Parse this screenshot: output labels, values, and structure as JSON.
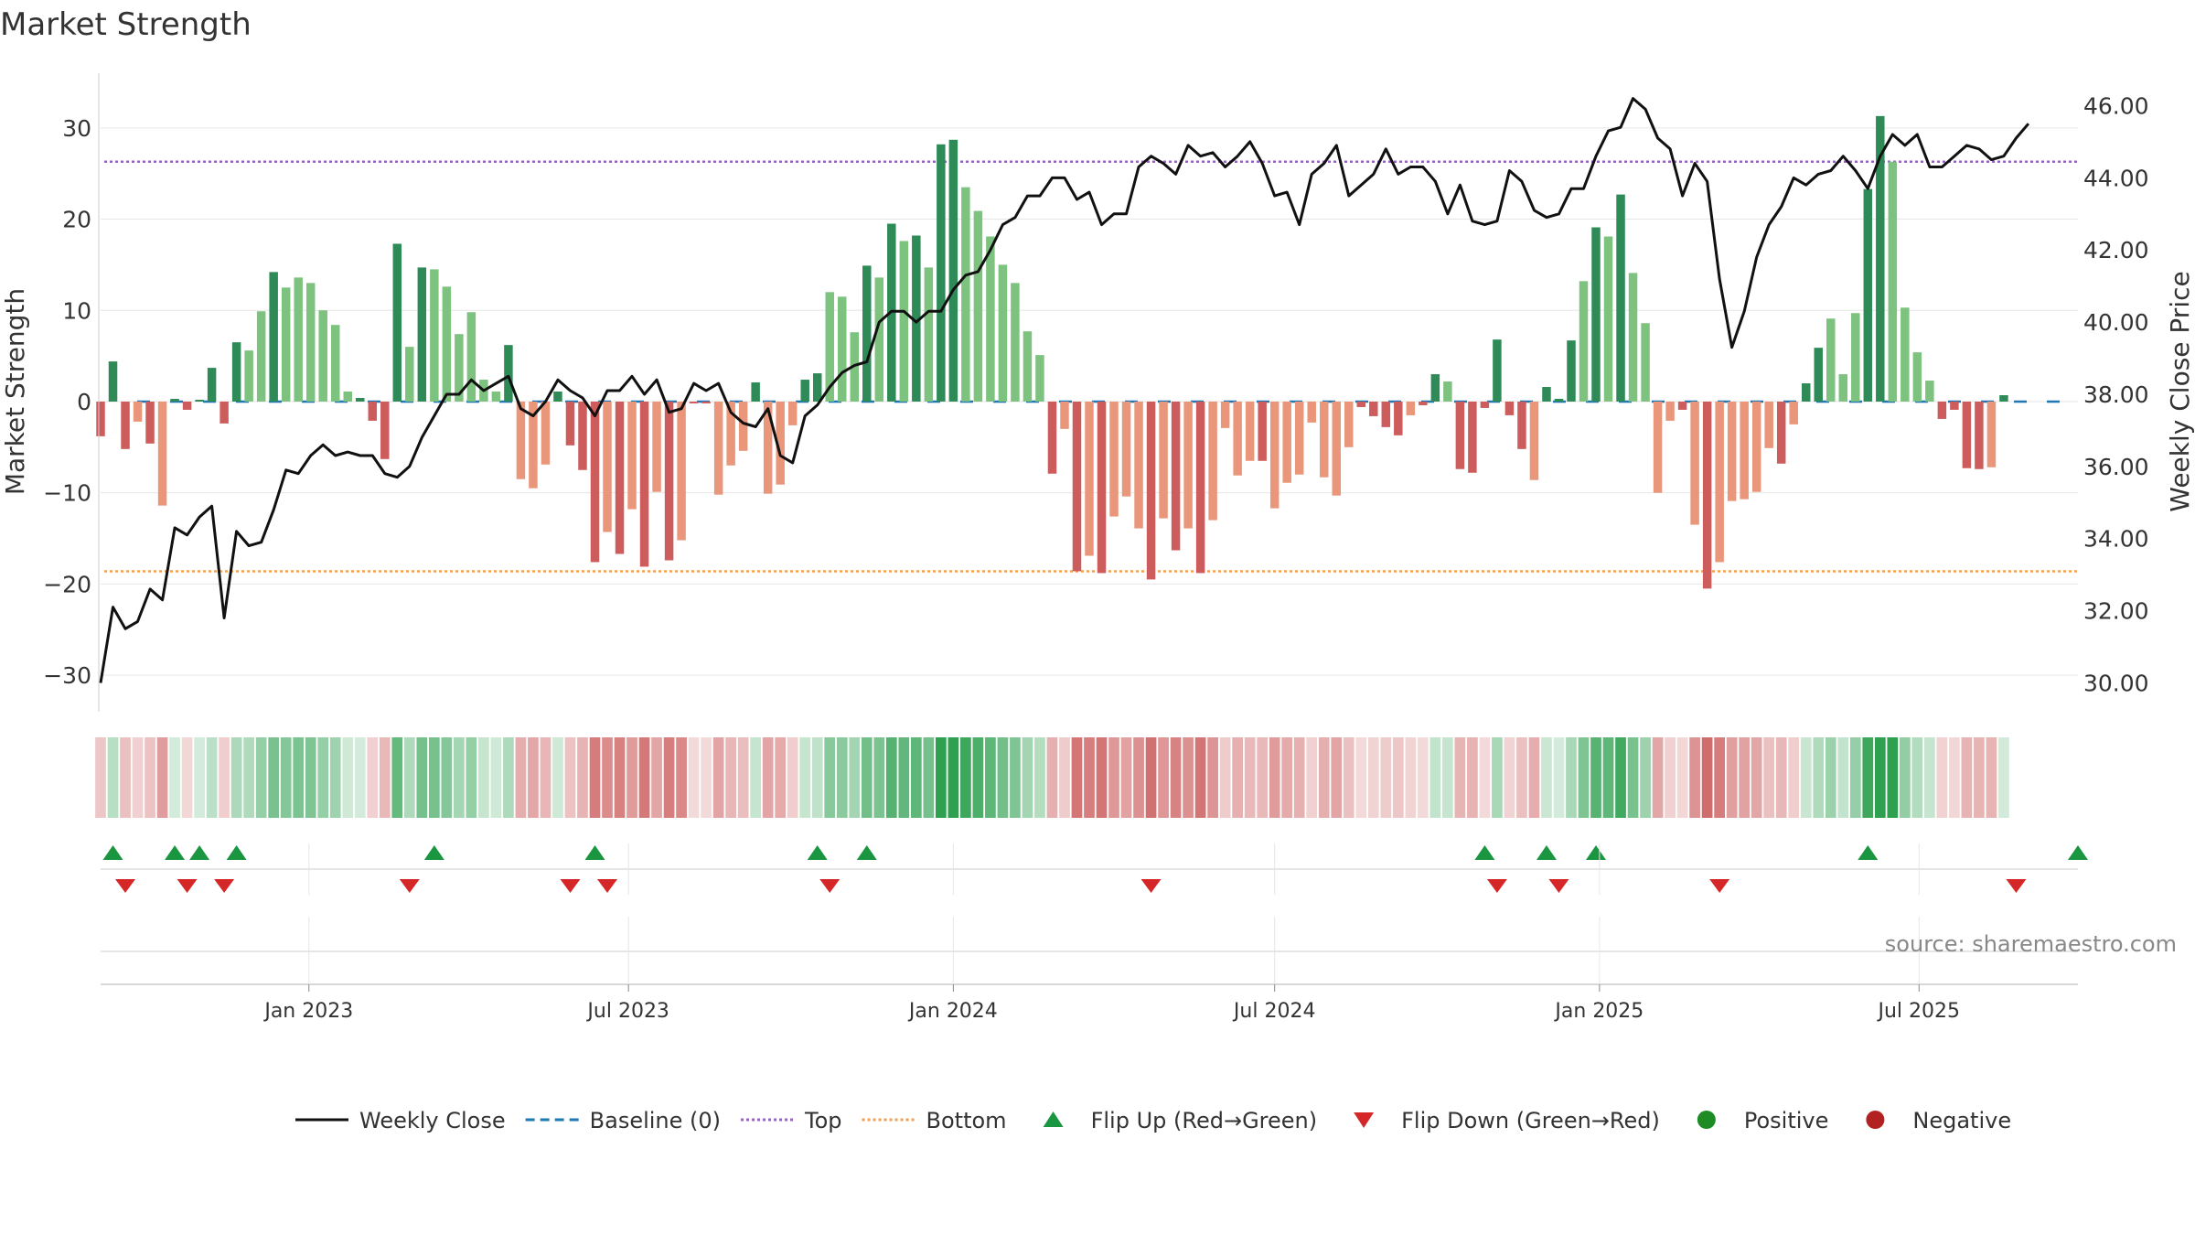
{
  "chart_data": {
    "type": "bar",
    "title": "Market Strength",
    "ylabel": "Market Strength",
    "y2label": "Weekly Close Price",
    "source": "source: sharemaestro.com",
    "x_range": [
      "2022-09-05",
      "2025-09-29"
    ],
    "ylim": [
      -34,
      36
    ],
    "y2lim": [
      29.2,
      46.9
    ],
    "yticks": [
      -30,
      -20,
      -10,
      0,
      10,
      20,
      30
    ],
    "y2ticks": [
      "30.00",
      "32.00",
      "34.00",
      "36.00",
      "38.00",
      "40.00",
      "42.00",
      "44.00",
      "46.00"
    ],
    "xticks": [
      {
        "date": "2023-01-01",
        "label": "Jan 2023"
      },
      {
        "date": "2023-07-01",
        "label": "Jul 2023"
      },
      {
        "date": "2024-01-01",
        "label": "Jan 2024"
      },
      {
        "date": "2024-07-01",
        "label": "Jul 2024"
      },
      {
        "date": "2025-01-01",
        "label": "Jan 2025"
      },
      {
        "date": "2025-07-01",
        "label": "Jul 2025"
      }
    ],
    "top_level": 26.3,
    "bottom_level": -18.6,
    "start_week": "2022-09-05",
    "strength": [
      -3.8,
      4.4,
      -5.2,
      -2.2,
      -4.6,
      -11.4,
      0.3,
      -0.9,
      0.2,
      3.7,
      -2.4,
      6.5,
      5.6,
      9.9,
      14.2,
      12.5,
      13.6,
      13.0,
      10.0,
      8.4,
      1.1,
      0.4,
      -2.1,
      -6.3,
      17.3,
      6.0,
      14.7,
      14.5,
      12.6,
      7.4,
      9.8,
      2.4,
      1.1,
      6.2,
      -8.5,
      -9.5,
      -6.9,
      1.1,
      -4.8,
      -7.5,
      -17.6,
      -14.3,
      -16.7,
      -11.8,
      -18.1,
      -9.9,
      -17.4,
      -15.2,
      -0.2,
      -0.2,
      -10.2,
      -7.0,
      -5.4,
      2.1,
      -10.1,
      -9.1,
      -2.6,
      2.4,
      3.1,
      12.0,
      11.5,
      7.6,
      14.9,
      13.6,
      19.5,
      17.6,
      18.2,
      14.7,
      28.2,
      28.7,
      23.5,
      20.9,
      18.1,
      15.0,
      13.0,
      7.7,
      5.1,
      -7.9,
      -3.0,
      -18.6,
      -16.9,
      -18.8,
      -12.6,
      -10.4,
      -13.9,
      -19.5,
      -12.8,
      -16.3,
      -13.9,
      -18.8,
      -13.0,
      -2.9,
      -8.1,
      -6.5,
      -6.5,
      -11.7,
      -8.9,
      -8.0,
      -2.3,
      -8.3,
      -10.3,
      -5.0,
      -0.6,
      -1.6,
      -2.8,
      -3.7,
      -1.5,
      -0.4,
      3.0,
      2.2,
      -7.4,
      -7.8,
      -0.7,
      6.8,
      -1.5,
      -5.2,
      -8.6,
      1.6,
      0.3,
      6.7,
      13.2,
      19.1,
      18.1,
      22.7,
      14.1,
      8.6,
      -10.0,
      -2.1,
      -0.9,
      -13.5,
      -20.5,
      -17.6,
      -10.9,
      -10.7,
      -9.9,
      -5.1,
      -6.8,
      -2.5,
      2.0,
      5.9,
      9.1,
      3.0,
      9.7,
      23.3,
      31.3,
      26.3,
      10.3,
      5.4,
      2.3,
      -1.9,
      -0.9,
      -7.3,
      -7.4,
      -7.2,
      0.7
    ],
    "weekly_close": [
      30.0,
      32.1,
      31.5,
      31.7,
      32.6,
      32.3,
      34.3,
      34.1,
      34.6,
      34.9,
      31.8,
      34.2,
      33.8,
      33.9,
      34.8,
      35.9,
      35.8,
      36.3,
      36.6,
      36.3,
      36.4,
      36.3,
      36.3,
      35.8,
      35.7,
      36.0,
      36.8,
      37.4,
      38.0,
      38.0,
      38.4,
      38.1,
      38.3,
      38.5,
      37.6,
      37.4,
      37.8,
      38.4,
      38.1,
      37.9,
      37.4,
      38.1,
      38.1,
      38.5,
      38.0,
      38.4,
      37.5,
      37.6,
      38.3,
      38.1,
      38.3,
      37.5,
      37.2,
      37.1,
      37.6,
      36.3,
      36.1,
      37.4,
      37.7,
      38.2,
      38.6,
      38.8,
      38.9,
      40.0,
      40.3,
      40.3,
      40.0,
      40.3,
      40.3,
      40.9,
      41.3,
      41.4,
      42.0,
      42.7,
      42.9,
      43.5,
      43.5,
      44.0,
      44.0,
      43.4,
      43.6,
      42.7,
      43.0,
      43.0,
      44.3,
      44.6,
      44.4,
      44.1,
      44.9,
      44.6,
      44.7,
      44.3,
      44.6,
      45.0,
      44.4,
      43.5,
      43.6,
      42.7,
      44.1,
      44.4,
      44.9,
      43.5,
      43.8,
      44.1,
      44.8,
      44.1,
      44.3,
      44.3,
      43.9,
      43.0,
      43.8,
      42.8,
      42.7,
      42.8,
      44.2,
      43.9,
      43.1,
      42.9,
      43.0,
      43.7,
      43.7,
      44.6,
      45.3,
      45.4,
      46.2,
      45.9,
      45.1,
      44.8,
      43.5,
      44.4,
      43.9,
      41.2,
      39.3,
      40.3,
      41.8,
      42.7,
      43.2,
      44.0,
      43.8,
      44.1,
      44.2,
      44.6,
      44.2,
      43.7,
      44.6,
      45.2,
      44.9,
      45.2,
      44.3,
      44.3,
      44.6,
      44.9,
      44.8,
      44.5,
      44.6,
      45.1,
      45.5
    ],
    "flip_up": [
      "2022-09-12",
      "2022-10-17",
      "2022-10-31",
      "2022-11-21",
      "2023-03-13",
      "2023-06-12",
      "2023-10-16",
      "2023-11-13",
      "2024-10-28",
      "2024-12-02",
      "2024-12-30",
      "2025-06-02",
      "2025-09-29"
    ],
    "flip_down": [
      "2022-09-19",
      "2022-10-24",
      "2022-11-14",
      "2023-02-27",
      "2023-05-29",
      "2023-06-19",
      "2023-10-23",
      "2024-04-22",
      "2024-11-04",
      "2024-12-09",
      "2025-03-10",
      "2025-08-25"
    ],
    "colors": {
      "strong_pos": "#2e8b57",
      "weak_pos": "#7ec27f",
      "strong_neg": "#cd5c5c",
      "weak_neg": "#e9967a",
      "close": "#111111",
      "baseline": "#1f77b4",
      "top": "#9467bd",
      "bottom": "#f0a050",
      "flip_up": "#1a9641",
      "flip_down": "#d62728",
      "positive": "#1e8b24",
      "negative": "#b22222",
      "grid": "#e6e6e6",
      "axis": "#cccccc"
    },
    "legend": [
      {
        "label": "Weekly Close",
        "kind": "line",
        "color": "#111111",
        "dash": ""
      },
      {
        "label": "Baseline (0)",
        "kind": "line",
        "color": "#1f77b4",
        "dash": "10,6"
      },
      {
        "label": "Top",
        "kind": "line",
        "color": "#9467bd",
        "dash": "3,3"
      },
      {
        "label": "Bottom",
        "kind": "line",
        "color": "#f0a050",
        "dash": "3,3"
      },
      {
        "label": "Flip Up (Red→Green)",
        "kind": "tri-up",
        "color": "#1a9641"
      },
      {
        "label": "Flip Down (Green→Red)",
        "kind": "tri-down",
        "color": "#d62728"
      },
      {
        "label": "Positive",
        "kind": "dot",
        "color": "#1e8b24"
      },
      {
        "label": "Negative",
        "kind": "dot",
        "color": "#b22222"
      }
    ]
  }
}
